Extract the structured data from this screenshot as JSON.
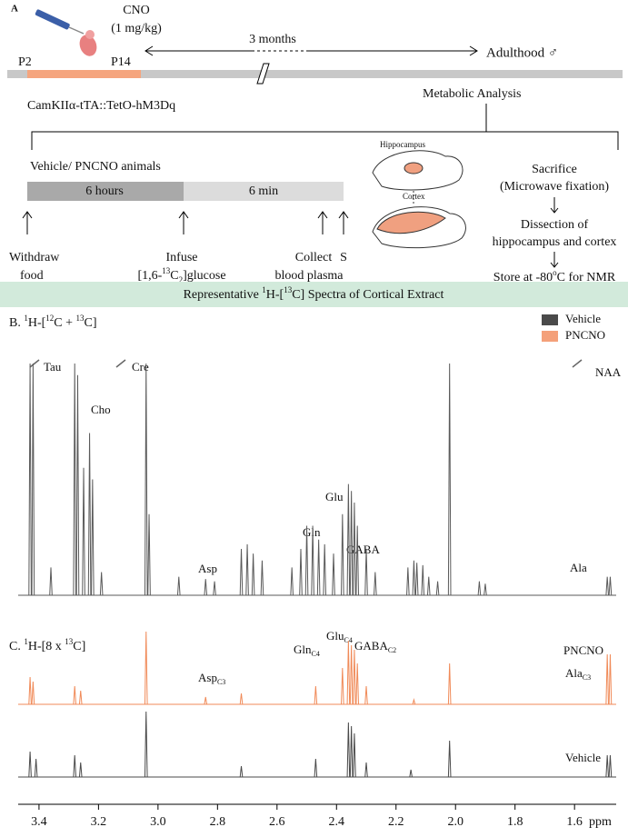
{
  "panel_a": {
    "label": "A",
    "drug": "CNO",
    "dose": "(1 mg/kg)",
    "start": "P2",
    "end": "P14",
    "duration": "3 months",
    "adult": "Adulthood ♂",
    "genotype": "CamKIIα-tTA::TetO-hM3Dq",
    "analysis": "Metabolic Analysis",
    "groups": "Vehicle/ PNCNO animals",
    "segments": [
      "6 hours",
      "6 min"
    ],
    "steps": {
      "withdraw": [
        "Withdraw",
        "food"
      ],
      "infuse": [
        "Infuse",
        "[1,6-",
        "13",
        "C",
        "2",
        "]glucose"
      ],
      "collect": [
        "Collect",
        "blood plasma"
      ],
      "s": "S"
    },
    "brain_labels": [
      "Hippocampus",
      "Cortex"
    ],
    "procedure": [
      "Sacrifice",
      "(Microwave fixation)",
      "Dissection of",
      "hippocampus and cortex",
      "Store at -80",
      "o",
      "C for NMR"
    ]
  },
  "banner": [
    "Representative ",
    "1",
    "H-[",
    "13",
    "C] Spectra of Cortical Extract"
  ],
  "panel_b": {
    "label": [
      "B. ",
      "1",
      "H-[",
      "12",
      "C + ",
      "13",
      "C]"
    ],
    "legend": [
      {
        "name": "Vehicle",
        "color": "#4a4a4a"
      },
      {
        "name": "PNCNO",
        "color": "#f4a07a"
      }
    ],
    "peaks": [
      "Tau",
      "Cho",
      "Cre",
      "Asp",
      "Gln",
      "Glu",
      "GABA",
      "NAA",
      "Ala"
    ]
  },
  "panel_c": {
    "label": [
      "C. ",
      "1",
      "H-[8 x ",
      "13",
      "C]"
    ],
    "peaks": [
      [
        "Asp",
        "C3"
      ],
      [
        "Gln",
        "C4"
      ],
      [
        "Glu",
        "C4"
      ],
      [
        "GABA",
        "C2"
      ],
      [
        "Ala",
        "C3"
      ]
    ],
    "traces": [
      "PNCNO",
      "Vehicle"
    ]
  },
  "spectra": {
    "b": {
      "color": "#5a5a5a",
      "ppm": [
        3.43,
        3.42,
        3.36,
        3.28,
        3.27,
        3.25,
        3.23,
        3.22,
        3.19,
        3.04,
        3.03,
        2.93,
        2.84,
        2.81,
        2.72,
        2.7,
        2.68,
        2.65,
        2.55,
        2.52,
        2.5,
        2.48,
        2.46,
        2.44,
        2.41,
        2.38,
        2.36,
        2.35,
        2.34,
        2.33,
        2.3,
        2.27,
        2.16,
        2.14,
        2.13,
        2.11,
        2.09,
        2.06,
        2.02,
        1.92,
        1.9,
        1.49,
        1.48
      ],
      "intensity": [
        1,
        1,
        0.12,
        1,
        0.95,
        0.55,
        0.7,
        0.5,
        0.1,
        1,
        0.35,
        0.08,
        0.07,
        0.06,
        0.2,
        0.22,
        0.18,
        0.15,
        0.12,
        0.2,
        0.3,
        0.3,
        0.24,
        0.22,
        0.18,
        0.35,
        0.48,
        0.45,
        0.4,
        0.3,
        0.2,
        0.1,
        0.12,
        0.15,
        0.14,
        0.13,
        0.08,
        0.06,
        1,
        0.06,
        0.05,
        0.08,
        0.08
      ]
    },
    "c_pncno": {
      "color": "#f08a58",
      "ppm": [
        3.43,
        3.42,
        3.28,
        3.26,
        3.04,
        2.84,
        2.72,
        2.47,
        2.38,
        2.36,
        2.35,
        2.34,
        2.33,
        2.3,
        2.14,
        2.02,
        1.49,
        1.48
      ],
      "intensity": [
        0.3,
        0.25,
        0.2,
        0.15,
        0.8,
        0.08,
        0.12,
        0.2,
        0.4,
        0.7,
        0.65,
        0.6,
        0.45,
        0.2,
        0.05,
        0.45,
        0.55,
        0.55
      ]
    },
    "c_vehicle": {
      "color": "#4a4a4a",
      "ppm": [
        3.43,
        3.41,
        3.28,
        3.26,
        3.04,
        2.72,
        2.47,
        2.36,
        2.35,
        2.34,
        2.3,
        2.15,
        2.02,
        1.49,
        1.48
      ],
      "intensity": [
        0.35,
        0.25,
        0.3,
        0.2,
        0.9,
        0.15,
        0.25,
        0.75,
        0.7,
        0.6,
        0.2,
        0.1,
        0.5,
        0.3,
        0.3
      ]
    }
  },
  "axis": {
    "xlim": [
      3.47,
      1.46
    ],
    "xticks": [
      3.4,
      3.2,
      {
        "value": 3,
        "label": "3.0"
      },
      2.8,
      2.6,
      2.4,
      2.2,
      {
        "value": 2,
        "label": "2.0"
      },
      1.8,
      1.6
    ],
    "unit": "ppm"
  }
}
